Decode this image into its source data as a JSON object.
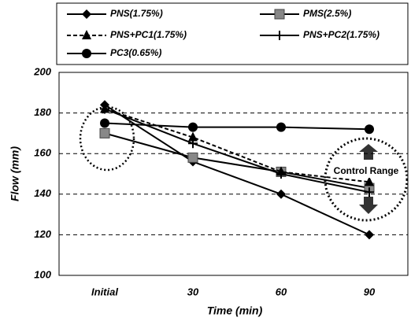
{
  "chart_data": {
    "type": "line",
    "categories": [
      "Initial",
      "30",
      "60",
      "90"
    ],
    "series": [
      {
        "name": "PNS(1.75%)",
        "color": "#000000",
        "marker": "diamond",
        "dash": false,
        "values": [
          184,
          156,
          140,
          120
        ]
      },
      {
        "name": "PMS(2.5%)",
        "color": "#000000",
        "marker": "square",
        "dash": false,
        "values": [
          170,
          158,
          151,
          143
        ]
      },
      {
        "name": "PNS+PC1(1.75%)",
        "color": "#000000",
        "marker": "triangle",
        "dash": true,
        "values": [
          182,
          168,
          151,
          146
        ]
      },
      {
        "name": "PNS+PC2(1.75%)",
        "color": "#000000",
        "marker": "plus",
        "dash": false,
        "values": [
          182,
          165,
          150,
          141
        ]
      },
      {
        "name": "PC3(0.65%)",
        "color": "#000000",
        "marker": "circle",
        "dash": false,
        "values": [
          175,
          173,
          173,
          172
        ]
      }
    ],
    "ylim": [
      100,
      200
    ],
    "yticks": [
      100,
      120,
      140,
      160,
      180,
      200
    ],
    "grid": true,
    "xlabel": "Time (min)",
    "ylabel": "Flow (mm)",
    "annotation": "Control Range"
  }
}
